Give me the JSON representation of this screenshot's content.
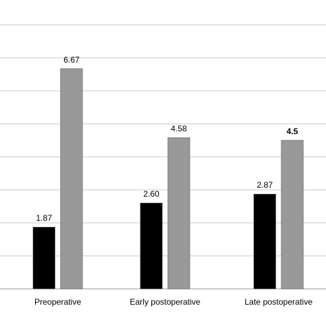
{
  "chart_data": {
    "type": "bar",
    "title": "",
    "xlabel": "",
    "ylabel": "",
    "categories": [
      "Preoperative",
      "Early postoperative",
      "Late postoperative"
    ],
    "series": [
      {
        "color": "#000000",
        "values": [
          1.87,
          2.6,
          2.87
        ],
        "labels": [
          "1.87",
          "2.60",
          "2.87"
        ]
      },
      {
        "color": "#999999",
        "values": [
          6.67,
          4.58,
          4.5
        ],
        "labels": [
          "6.67",
          "4.58",
          "4.5"
        ]
      }
    ],
    "ylim": [
      0,
      8
    ],
    "y_major_step": 1,
    "grid": true,
    "legend": "none"
  }
}
